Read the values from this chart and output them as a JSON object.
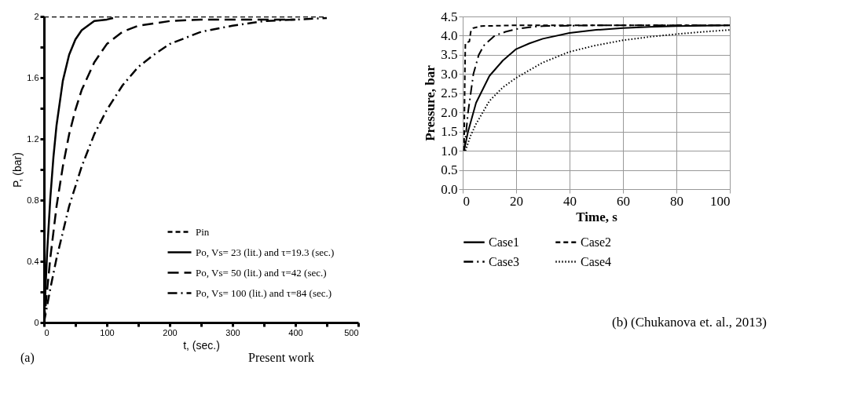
{
  "chart_data": [
    {
      "type": "line",
      "xlabel": "t, (sec.)",
      "ylabel": "P, (bar)",
      "xlim": [
        0,
        500
      ],
      "ylim": [
        0,
        2
      ],
      "xticks": [
        0,
        {
          "value": 50,
          "label": null
        },
        100,
        {
          "value": 150,
          "label": null
        },
        200,
        {
          "value": 250,
          "label": null
        },
        300,
        {
          "value": 350,
          "label": null
        },
        400,
        {
          "value": 450,
          "label": null
        },
        500
      ],
      "yticks": [
        0,
        {
          "value": 0.2,
          "label": null
        },
        0.4,
        {
          "value": 0.6,
          "label": null
        },
        0.8,
        {
          "value": 1.0,
          "label": null
        },
        1.2,
        {
          "value": 1.4,
          "label": null
        },
        1.6,
        {
          "value": 1.8,
          "label": null
        },
        2
      ],
      "grid": false,
      "legend": "bottom right",
      "marker": "none",
      "annotations": [
        "(a)",
        "Present work"
      ],
      "series": [
        {
          "name": "Pin",
          "color": "#000000",
          "line_style": "dashed",
          "x": [
            0,
            450
          ],
          "values": [
            2,
            2
          ]
        },
        {
          "name": "Po, Vs= 23 (lit.) and τ=19.3 (sec.)",
          "color": "#000000",
          "line_style": "solid",
          "x": [
            0,
            5,
            10,
            15,
            20,
            30,
            40,
            50,
            60,
            80,
            100,
            110
          ],
          "values": [
            0,
            0.46,
            0.81,
            1.08,
            1.29,
            1.58,
            1.75,
            1.85,
            1.91,
            1.97,
            1.98,
            1.99
          ]
        },
        {
          "name": "Po, Vs= 50 (lit.) and τ=42 (sec.)",
          "color": "#000000",
          "line_style": "longdashed",
          "x": [
            0,
            10,
            20,
            30,
            40,
            50,
            60,
            80,
            100,
            125,
            150,
            200,
            250,
            300,
            400
          ],
          "values": [
            0,
            0.42,
            0.76,
            1.02,
            1.23,
            1.39,
            1.52,
            1.7,
            1.82,
            1.9,
            1.94,
            1.97,
            1.98,
            1.98,
            1.98
          ]
        },
        {
          "name": "Po, Vs= 100 (lit.) and τ=84 (sec.)",
          "color": "#000000",
          "line_style": "dashdot",
          "x": [
            0,
            10,
            20,
            40,
            60,
            80,
            100,
            125,
            150,
            175,
            200,
            250,
            300,
            350,
            400,
            450
          ],
          "values": [
            0,
            0.22,
            0.42,
            0.76,
            1.02,
            1.23,
            1.39,
            1.55,
            1.67,
            1.75,
            1.82,
            1.9,
            1.94,
            1.97,
            1.98,
            1.99
          ]
        }
      ]
    },
    {
      "type": "line",
      "xlabel": "Time, s",
      "ylabel": "Pressure, bar",
      "xlim": [
        0,
        100
      ],
      "ylim": [
        0,
        4.5
      ],
      "xticks": [
        0,
        20,
        40,
        60,
        80,
        100
      ],
      "yticks": [
        {
          "value": 0,
          "label": "0.0"
        },
        0.5,
        {
          "value": 1,
          "label": "1.0"
        },
        1.5,
        {
          "value": 2,
          "label": "2.0"
        },
        2.5,
        {
          "value": 3,
          "label": "3.0"
        },
        3.5,
        {
          "value": 4,
          "label": "4.0"
        },
        4.5
      ],
      "grid": true,
      "legend": "bottom",
      "marker": "none",
      "annotations": [
        "(b) (Chukanova et. al., 2013)"
      ],
      "series": [
        {
          "name": "Case1",
          "color": "#000000",
          "line_style": "solid",
          "x": [
            0.5,
            2,
            5,
            10,
            15,
            20,
            25,
            30,
            40,
            50,
            60,
            70,
            80,
            100
          ],
          "values": [
            1.0,
            1.5,
            2.25,
            2.95,
            3.35,
            3.65,
            3.8,
            3.92,
            4.07,
            4.15,
            4.2,
            4.23,
            4.25,
            4.27
          ]
        },
        {
          "name": "Case2",
          "color": "#000000",
          "line_style": "dashed",
          "x": [
            0.5,
            0.8,
            1,
            2.5,
            3,
            4,
            7,
            20,
            100
          ],
          "values": [
            1.0,
            3.0,
            3.8,
            3.85,
            4.1,
            4.2,
            4.25,
            4.27,
            4.27
          ]
        },
        {
          "name": "Case3",
          "color": "#000000",
          "line_style": "dashdot",
          "x": [
            0.5,
            1,
            2,
            4,
            6,
            8,
            12,
            16,
            20,
            25,
            30,
            50,
            100
          ],
          "values": [
            1.0,
            1.3,
            2.0,
            3.0,
            3.5,
            3.75,
            4.0,
            4.1,
            4.17,
            4.22,
            4.25,
            4.27,
            4.27
          ]
        },
        {
          "name": "Case4",
          "color": "#000000",
          "line_style": "dotted",
          "x": [
            1,
            3,
            5,
            10,
            15,
            20,
            30,
            40,
            50,
            60,
            70,
            80,
            90,
            100
          ],
          "values": [
            1.0,
            1.4,
            1.7,
            2.3,
            2.65,
            2.9,
            3.3,
            3.58,
            3.75,
            3.88,
            3.97,
            4.04,
            4.1,
            4.15
          ]
        }
      ]
    }
  ]
}
